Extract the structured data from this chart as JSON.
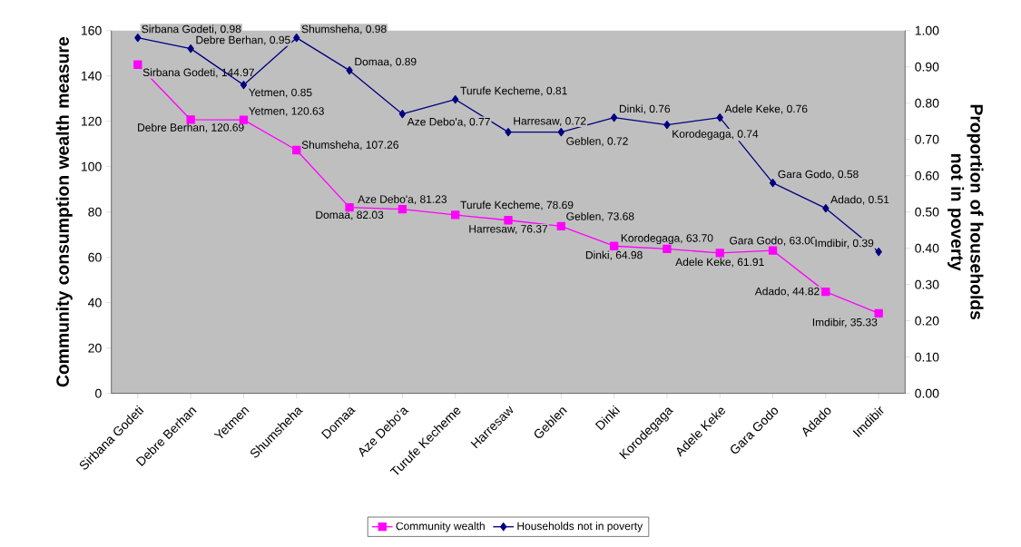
{
  "chart_data": {
    "type": "line",
    "categories": [
      "Sirbana Godeti",
      "Debre Berhan",
      "Yetmen",
      "Shumsheha",
      "Domaa",
      "Aze Debo'a",
      "Turufe Kecheme",
      "Harresaw",
      "Geblen",
      "Dinki",
      "Korodegaga",
      "Adele Keke",
      "Gara Godo",
      "Adado",
      "Imdibir"
    ],
    "series": [
      {
        "name": "Community wealth",
        "color": "#ff00ff",
        "marker": "square",
        "values": [
          144.97,
          120.69,
          120.63,
          107.26,
          82.03,
          81.23,
          78.69,
          76.37,
          73.68,
          64.98,
          63.7,
          61.91,
          63.0,
          44.82,
          35.33
        ],
        "value_labels": [
          "Sirbana Godeti, 144.97",
          "Debre Berhan, 120.69",
          "Yetmen, 120.63",
          "Shumsheha, 107.26",
          "Domaa, 82.03",
          "Aze Debo'a, 81.23",
          "Turufe Kecheme, 78.69",
          "Harresaw, 76.37",
          "Geblen, 73.68",
          "Dinki, 64.98",
          "Korodegaga, 63.70",
          "Adele Keke, 61.91",
          "Gara Godo, 63.00",
          "Adado, 44.82",
          "Imdibir, 35.33"
        ]
      },
      {
        "name": "Households not in poverty",
        "color": "#000080",
        "marker": "diamond",
        "axis": "y2",
        "values": [
          0.98,
          0.95,
          0.85,
          0.98,
          0.89,
          0.77,
          0.81,
          0.72,
          0.72,
          0.76,
          0.74,
          0.76,
          0.58,
          0.51,
          0.39
        ],
        "value_labels": [
          "Sirbana Godeti, 0.98",
          "Debre Berhan, 0.95",
          "Yetmen, 0.85",
          "Shumsheha, 0.98",
          "Domaa, 0.89",
          "Aze Debo'a, 0.77",
          "Turufe Kecheme, 0.81",
          "Harresaw, 0.72",
          "Geblen, 0.72",
          "Dinki, 0.76",
          "Korodegaga, 0.74",
          "Adele Keke, 0.76",
          "Gara Godo, 0.58",
          "Adado, 0.51",
          "Imdibir, 0.39"
        ]
      }
    ],
    "ylabel": "Community consumption wealth measure",
    "y2label": "Proportion of households not in poverty",
    "ylim": [
      0,
      160
    ],
    "yticks": [
      0,
      20,
      40,
      60,
      80,
      100,
      120,
      140,
      160
    ],
    "y2lim": [
      0,
      1
    ],
    "y2ticks": [
      {
        "value": 0,
        "label": "0.00"
      },
      {
        "value": 0.1,
        "label": "0.10"
      },
      {
        "value": 0.2,
        "label": "0.20"
      },
      {
        "value": 0.3,
        "label": "0.30"
      },
      {
        "value": 0.4,
        "label": "0.40"
      },
      {
        "value": 0.5,
        "label": "0.50"
      },
      {
        "value": 0.6,
        "label": "0.60"
      },
      {
        "value": 0.7,
        "label": "0.70"
      },
      {
        "value": 0.8,
        "label": "0.80"
      },
      {
        "value": 0.9,
        "label": "0.90"
      },
      {
        "value": 1,
        "label": "1.00"
      }
    ],
    "legend": "bottom",
    "grid": false,
    "line_style": "solid"
  }
}
